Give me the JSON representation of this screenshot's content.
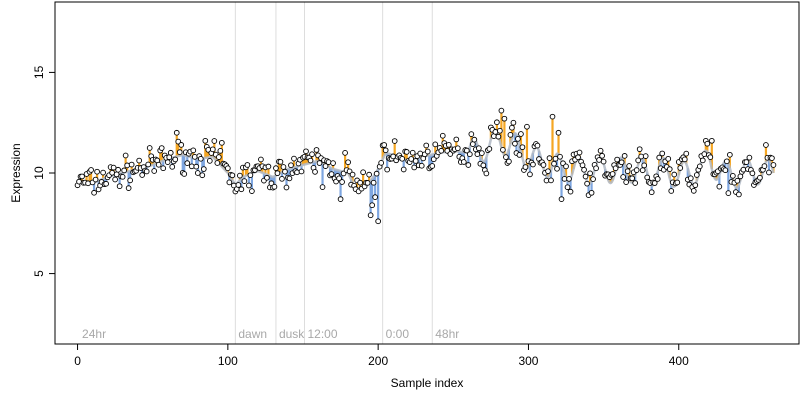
{
  "chart_data": {
    "type": "scatter",
    "title": "",
    "xlabel": "Sample index",
    "ylabel": "Expression",
    "xlim": [
      -15,
      480
    ],
    "ylim": [
      1.5,
      18.5
    ],
    "x_ticks": [
      0,
      100,
      200,
      300,
      400
    ],
    "y_ticks": [
      5,
      10,
      15
    ],
    "grid": false,
    "legend": "none",
    "colors": {
      "points_stroke": "#000000",
      "points_fill": "#ffffff",
      "above_fit": "#f5a623",
      "below_fit": "#7ea6e0",
      "fit_line": "#b0b8c4",
      "marker_lines": "#dddddd",
      "annotation_text": "#a8a8a8"
    },
    "vertical_markers": [
      {
        "x": 1,
        "label": "24hr",
        "line": false
      },
      {
        "x": 105,
        "label": "dawn",
        "line": true
      },
      {
        "x": 132,
        "label": "dusk",
        "line": true
      },
      {
        "x": 151,
        "label": "12:00",
        "line": true
      },
      {
        "x": 203,
        "label": "0:00",
        "line": true
      },
      {
        "x": 236,
        "label": "48hr",
        "line": true
      }
    ],
    "series": [
      {
        "keypoints": [
          [
            0,
            9.6
          ],
          [
            10,
            9.5
          ],
          [
            20,
            9.8
          ],
          [
            30,
            10.0
          ],
          [
            40,
            10.2
          ],
          [
            50,
            10.4
          ],
          [
            60,
            10.7
          ],
          [
            70,
            10.9
          ],
          [
            80,
            10.7
          ],
          [
            90,
            10.8
          ],
          [
            100,
            10.0
          ],
          [
            105,
            9.4
          ],
          [
            110,
            9.8
          ],
          [
            120,
            10.1
          ],
          [
            130,
            9.8
          ],
          [
            140,
            10.2
          ],
          [
            150,
            10.4
          ],
          [
            160,
            10.6
          ],
          [
            170,
            10.2
          ],
          [
            180,
            10.0
          ],
          [
            185,
            9.2
          ],
          [
            190,
            9.3
          ],
          [
            195,
            9.6
          ],
          [
            200,
            10.2
          ],
          [
            205,
            11.0
          ],
          [
            210,
            10.9
          ],
          [
            220,
            10.6
          ],
          [
            230,
            10.8
          ],
          [
            240,
            11.0
          ],
          [
            250,
            11.1
          ],
          [
            260,
            11.0
          ],
          [
            270,
            11.2
          ],
          [
            280,
            11.6
          ],
          [
            290,
            11.4
          ],
          [
            300,
            10.8
          ],
          [
            310,
            10.5
          ],
          [
            320,
            10.3
          ],
          [
            330,
            10.2
          ],
          [
            340,
            10.1
          ],
          [
            350,
            10.2
          ],
          [
            360,
            10.1
          ],
          [
            370,
            10.2
          ],
          [
            380,
            10.0
          ],
          [
            390,
            10.1
          ],
          [
            400,
            9.9
          ],
          [
            410,
            10.0
          ],
          [
            420,
            10.6
          ],
          [
            430,
            10.0
          ],
          [
            440,
            9.9
          ],
          [
            450,
            10.1
          ],
          [
            463,
            10.0
          ]
        ],
        "oscillations": [
          {
            "x_from": 260,
            "x_to": 463,
            "period": 14,
            "amplitude": 0.65
          }
        ],
        "n_points": 464,
        "scatter_seed": 7,
        "scatter_amplitude": 0.55,
        "outliers": [
          [
            66,
            12.0
          ],
          [
            85,
            11.6
          ],
          [
            96,
            11.5
          ],
          [
            178,
            11.0
          ],
          [
            195,
            7.9
          ],
          [
            196,
            8.4
          ],
          [
            198,
            8.8
          ],
          [
            200,
            7.6
          ],
          [
            282,
            13.1
          ],
          [
            284,
            12.7
          ],
          [
            290,
            12.5
          ],
          [
            299,
            12.3
          ],
          [
            316,
            12.8
          ],
          [
            320,
            12.0
          ],
          [
            322,
            8.7
          ],
          [
            418,
            11.6
          ],
          [
            422,
            11.6
          ],
          [
            433,
            9.0
          ],
          [
            163,
            9.3
          ],
          [
            116,
            9.1
          ],
          [
            175,
            8.7
          ],
          [
            281,
            12.1
          ]
        ]
      }
    ]
  }
}
